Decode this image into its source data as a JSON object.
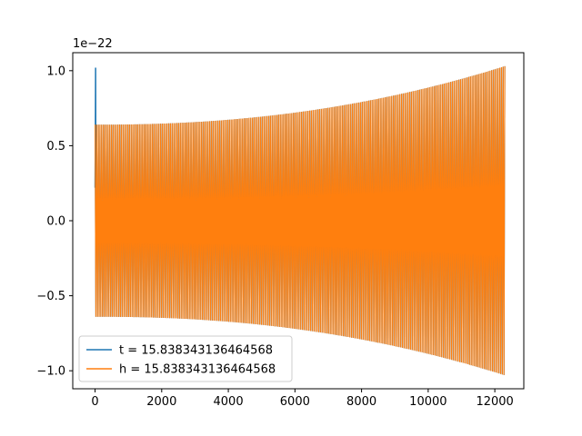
{
  "chart_data": {
    "type": "line",
    "title": "",
    "xlabel": "",
    "ylabel": "",
    "y_offset_label": "1e−22",
    "xlim": [
      -670,
      12870
    ],
    "ylim": [
      -1.12,
      1.12
    ],
    "xticks": [
      0,
      2000,
      4000,
      6000,
      8000,
      10000,
      12000
    ],
    "xtick_labels": [
      "0",
      "2000",
      "4000",
      "6000",
      "8000",
      "10000",
      "12000"
    ],
    "yticks": [
      -1.0,
      -0.5,
      0.0,
      0.5,
      1.0
    ],
    "ytick_labels": [
      "−1.0",
      "−0.5",
      "0.0",
      "0.5",
      "1.0"
    ],
    "grid": false,
    "legend_position": "lower-left",
    "series": [
      {
        "name": "t = 15.838343136464568",
        "color": "#1f77b4",
        "description_points": {
          "x": [
            0,
            8,
            16,
            24
          ],
          "y": [
            0.22,
            0.5,
            1.02,
            0.22
          ]
        },
        "envelope": {
          "x": [
            0,
            12300
          ],
          "y_start": 0.64,
          "y_end": 1.03
        },
        "cycles": 250
      },
      {
        "name": "h = 15.838343136464568",
        "color": "#ff7f0e",
        "envelope": {
          "x": [
            0,
            12300
          ],
          "y_start": 0.64,
          "y_end": 1.03
        },
        "cycles": 250
      }
    ]
  }
}
